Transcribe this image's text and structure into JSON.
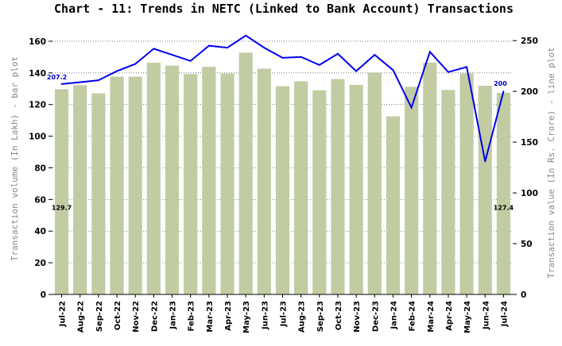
{
  "chart_data": {
    "type": "bar+line",
    "title": "Chart - 11: Trends in NETC (Linked to Bank Account) Transactions",
    "categories": [
      "Jul-22",
      "Aug-22",
      "Sep-22",
      "Oct-22",
      "Nov-22",
      "Dec-22",
      "Jan-23",
      "Feb-23",
      "Mar-23",
      "Apr-23",
      "May-23",
      "Jun-23",
      "Jul-23",
      "Aug-23",
      "Sep-23",
      "Oct-23",
      "Nov-23",
      "Dec-23",
      "Jan-24",
      "Feb-24",
      "Mar-24",
      "Apr-24",
      "May-24",
      "Jun-24",
      "Jul-24"
    ],
    "series": [
      {
        "name": "Transaction volume (In Lakh)",
        "type": "bar",
        "axis": "left",
        "color": "#c2cca3",
        "values": [
          129.7,
          132.2,
          127.1,
          137.6,
          137.6,
          146.4,
          144.6,
          139.3,
          143.8,
          139.6,
          152.8,
          142.6,
          131.6,
          134.7,
          129.0,
          136.1,
          132.4,
          140.2,
          112.5,
          131.2,
          146.5,
          129.2,
          139.7,
          131.9,
          127.4
        ]
      },
      {
        "name": "Transaction value (In Rs. Crore)",
        "type": "line",
        "axis": "right",
        "color": "#0000ee",
        "values": [
          207.2,
          209.0,
          211.0,
          220.0,
          227.0,
          242.0,
          236.0,
          230.0,
          245.0,
          243.0,
          255.0,
          243.0,
          233.0,
          234.0,
          226.0,
          237.0,
          220.0,
          236.0,
          221.0,
          184.0,
          239.0,
          219.0,
          224.0,
          131.0,
          200.0
        ]
      }
    ],
    "data_labels": {
      "bar_first": "129.7",
      "bar_last": "127.4",
      "line_first": "207.2",
      "line_last": "200"
    },
    "ylabel": "Transaction volume (In Lakh) - bar plot",
    "y2label": "Transaction value (In Rs. Crore) - line plot",
    "ylim": [
      0,
      170
    ],
    "yticks": [
      0,
      20,
      40,
      60,
      80,
      100,
      120,
      140,
      160
    ],
    "y2lim": [
      0,
      265
    ],
    "y2ticks": [
      0,
      50,
      100,
      150,
      200,
      250
    ],
    "grid": "horizontal dotted"
  }
}
